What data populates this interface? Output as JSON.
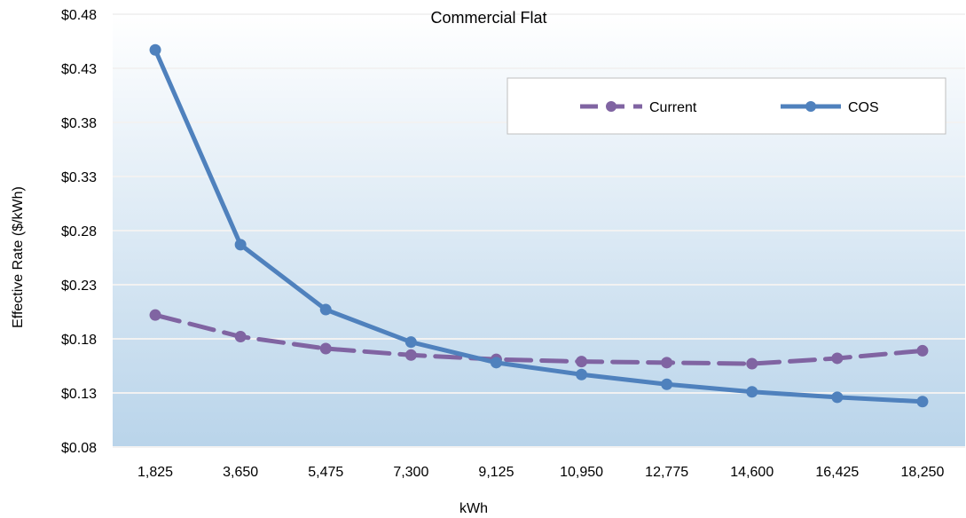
{
  "chart_data": {
    "type": "line",
    "title": "Commercial Flat",
    "xlabel": "kWh",
    "ylabel": "Effective Rate ($/kWh)",
    "categories": [
      "1,825",
      "3,650",
      "5,475",
      "7,300",
      "9,125",
      "10,950",
      "12,775",
      "14,600",
      "16,425",
      "18,250"
    ],
    "ylim": [
      0.08,
      0.48
    ],
    "yticks": [
      "$0.08",
      "$0.13",
      "$0.18",
      "$0.23",
      "$0.28",
      "$0.33",
      "$0.38",
      "$0.43",
      "$0.48"
    ],
    "grid": true,
    "legend_position": "top-right",
    "series": [
      {
        "name": "Current",
        "style": "dashed",
        "color": "#8064A2",
        "values": [
          0.202,
          0.182,
          0.171,
          0.165,
          0.161,
          0.159,
          0.158,
          0.157,
          0.162,
          0.169
        ]
      },
      {
        "name": "COS",
        "style": "solid",
        "color": "#4F81BD",
        "values": [
          0.447,
          0.267,
          0.207,
          0.177,
          0.158,
          0.147,
          0.138,
          0.131,
          0.126,
          0.122
        ]
      }
    ],
    "colors": {
      "plot_gradient_top": "#ffffff",
      "plot_gradient_bottom": "#b9d4ea",
      "gridline": "#f2f2f2",
      "legend_border": "#bfbfbf"
    }
  }
}
